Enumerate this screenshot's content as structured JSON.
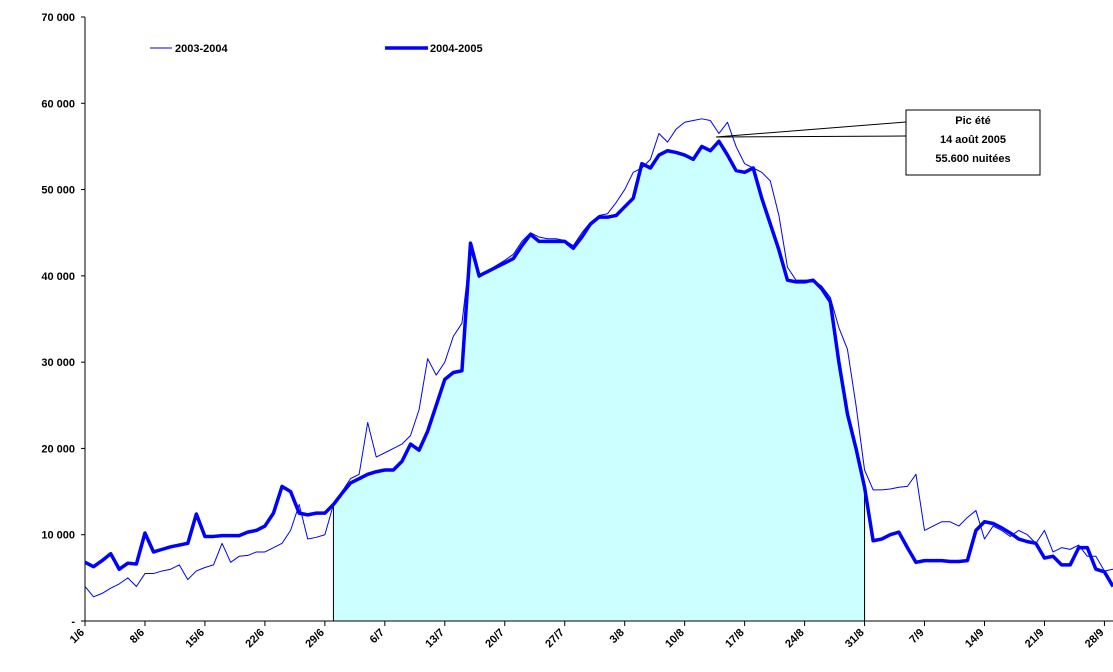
{
  "chart_data": {
    "type": "line",
    "categories": [
      "1/6",
      null,
      null,
      null,
      null,
      null,
      null,
      "8/6",
      null,
      null,
      null,
      null,
      null,
      null,
      "15/6",
      null,
      null,
      null,
      null,
      null,
      null,
      "22/6",
      null,
      null,
      null,
      null,
      null,
      null,
      "29/6",
      null,
      null,
      null,
      null,
      null,
      null,
      "6/7",
      null,
      null,
      null,
      null,
      null,
      null,
      "13/7",
      null,
      null,
      null,
      null,
      null,
      null,
      "20/7",
      null,
      null,
      null,
      null,
      null,
      null,
      "27/7",
      null,
      null,
      null,
      null,
      null,
      null,
      "3/8",
      null,
      null,
      null,
      null,
      null,
      null,
      "10/8",
      null,
      null,
      null,
      null,
      null,
      null,
      "17/8",
      null,
      null,
      null,
      null,
      null,
      null,
      "24/8",
      null,
      null,
      null,
      null,
      null,
      null,
      "31/8",
      null,
      null,
      null,
      null,
      null,
      null,
      "7/9",
      null,
      null,
      null,
      null,
      null,
      null,
      "14/9",
      null,
      null,
      null,
      null,
      null,
      null,
      "21/9",
      null,
      null,
      null,
      null,
      null,
      null,
      "28/9",
      null
    ],
    "series": [
      {
        "name": "2003-2004",
        "color": "#0000ff",
        "width": 1,
        "values": [
          4000,
          2800,
          3200,
          3800,
          4300,
          5000,
          4000,
          5500,
          5500,
          5800,
          6000,
          6500,
          4800,
          5800,
          6200,
          6500,
          9000,
          6800,
          7500,
          7600,
          8000,
          8000,
          8500,
          9000,
          10500,
          13500,
          9500,
          9700,
          10000,
          13500,
          15000,
          16500,
          17000,
          23000,
          19000,
          19500,
          20000,
          20500,
          21500,
          24500,
          30400,
          28500,
          30000,
          33000,
          34500,
          43000,
          39800,
          40500,
          41200,
          41800,
          42500,
          44000,
          45000,
          44500,
          44300,
          44300,
          44100,
          43500,
          45000,
          46200,
          47000,
          47200,
          48500,
          50000,
          52000,
          52500,
          53500,
          56500,
          55500,
          57000,
          57800,
          58000,
          58200,
          58000,
          56500,
          57800,
          55000,
          53000,
          52500,
          52000,
          51000,
          47000,
          41000,
          39500,
          39500,
          39500,
          38800,
          37500,
          34000,
          31500,
          25000,
          17500,
          15200,
          15200,
          15300,
          15500,
          15600,
          17000,
          10500,
          11000,
          11500,
          11500,
          11000,
          12000,
          12800,
          9500,
          11000,
          10500,
          9800,
          10500,
          10000,
          9000,
          10500,
          8000,
          8500,
          8300,
          8800,
          7500,
          7500,
          5800,
          6000
        ]
      },
      {
        "name": "2004-2005",
        "color": "#0000ff",
        "width": 3.5,
        "values": [
          6800,
          6300,
          7000,
          7800,
          6000,
          6700,
          6600,
          10200,
          8000,
          8300,
          8600,
          8800,
          9000,
          12400,
          9800,
          9800,
          9900,
          9900,
          9900,
          10300,
          10500,
          11000,
          12500,
          15600,
          15000,
          12500,
          12300,
          12500,
          12500,
          13500,
          14800,
          16000,
          16500,
          17000,
          17300,
          17500,
          17500,
          18500,
          20500,
          19800,
          22000,
          25000,
          28000,
          28800,
          29000,
          43800,
          40000,
          40500,
          41000,
          41500,
          42000,
          43500,
          44800,
          44000,
          44000,
          44000,
          44000,
          43200,
          44500,
          46000,
          46800,
          46800,
          47000,
          48000,
          49000,
          53000,
          52500,
          54000,
          54500,
          54300,
          54000,
          53500,
          55000,
          54500,
          55600,
          54000,
          52200,
          52000,
          52500,
          49000,
          46000,
          43000,
          39500,
          39300,
          39300,
          39500,
          38500,
          37000,
          30000,
          24000,
          20000,
          15500,
          9300,
          9500,
          10000,
          10300,
          8500,
          6800,
          7000,
          7000,
          7000,
          6900,
          6900,
          7000,
          10500,
          11500,
          11300,
          10800,
          10200,
          9500,
          9200,
          9000,
          7300,
          7500,
          6500,
          6500,
          8500,
          8500,
          6000,
          5700,
          4000
        ]
      }
    ],
    "area": {
      "series": 1,
      "start": 29,
      "end": 91,
      "color": "#ccffff"
    },
    "ylim": [
      0,
      70000
    ],
    "yticks": [
      {
        "value": 0,
        "label": "-"
      },
      {
        "value": 10000,
        "label": "10 000"
      },
      {
        "value": 20000,
        "label": "20 000"
      },
      {
        "value": 30000,
        "label": "30 000"
      },
      {
        "value": 40000,
        "label": "40 000"
      },
      {
        "value": 50000,
        "label": "50 000"
      },
      {
        "value": 60000,
        "label": "60 000"
      },
      {
        "value": 70000,
        "label": "70 000"
      }
    ],
    "annotation": [
      "Pic été",
      "14 août 2005",
      "55.600  nuitées"
    ]
  }
}
